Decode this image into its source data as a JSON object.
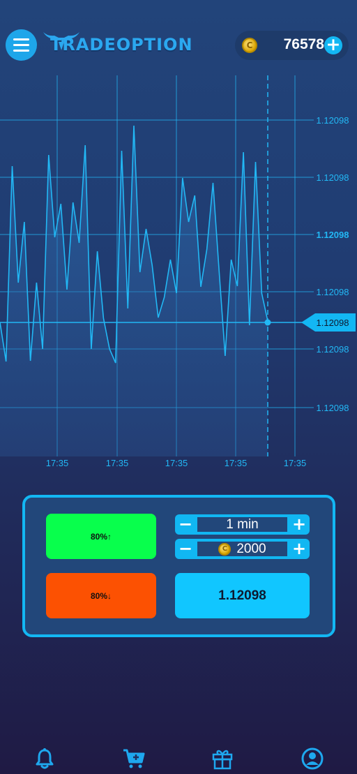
{
  "app": {
    "logo_text": "TRADEOPTION"
  },
  "header": {
    "menu_icon": "hamburger-menu-icon",
    "balance": "76578",
    "coin_symbol": "C",
    "add_icon": "plus-icon"
  },
  "chart_data": {
    "type": "line",
    "ytick_labels": [
      "1.12098",
      "1.12098",
      "1.12098",
      "1.12098",
      "1.12098",
      "1.12098"
    ],
    "xtick_labels": [
      "17:35",
      "17:35",
      "17:35",
      "17:35",
      "17:35"
    ],
    "current_price_label": "1.12098",
    "line_color": "#22b8f5",
    "grid": true,
    "series": [
      {
        "values": [
          462,
          518,
          238,
          405,
          318,
          517,
          405,
          500,
          222,
          340,
          292,
          415,
          290,
          348,
          208,
          500,
          360,
          456,
          500,
          520,
          216,
          442,
          180,
          390,
          328,
          380,
          455,
          426,
          372,
          420,
          255,
          318,
          280,
          411,
          357,
          262,
          388,
          510,
          372,
          410,
          218,
          466,
          232,
          420,
          460
        ]
      }
    ]
  },
  "trade": {
    "up_label": "80%↑",
    "down_label": "80%↓",
    "time_value": "1 min",
    "amount_value": "2000",
    "minus_symbol": "−",
    "plus_symbol": "+",
    "price_value": "1.12098"
  },
  "nav": [
    {
      "icon": "bell-icon"
    },
    {
      "icon": "cart-plus-icon"
    },
    {
      "icon": "gift-icon"
    },
    {
      "icon": "user-profile-icon"
    }
  ]
}
